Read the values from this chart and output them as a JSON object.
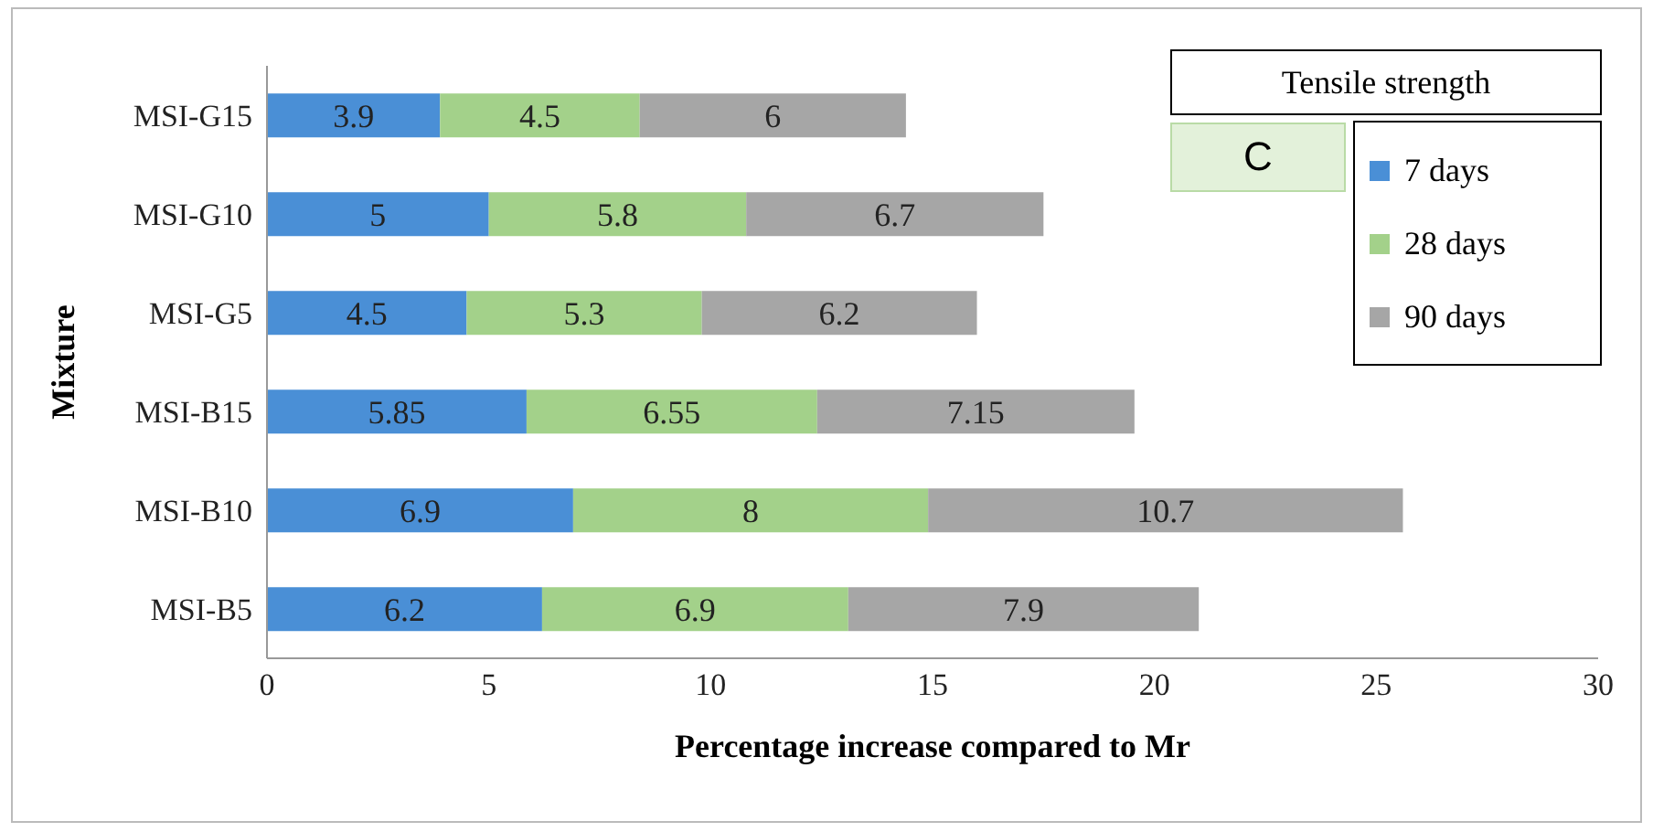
{
  "chart_data": {
    "type": "bar",
    "orientation": "horizontal",
    "stacked": true,
    "xlabel": "Percentage increase compared to Mr",
    "ylabel": "Mixture",
    "categories": [
      "MSI-G15",
      "MSI-G10",
      "MSI-G5",
      "MSI-B15",
      "MSI-B10",
      "MSI-B5"
    ],
    "series": [
      {
        "name": "7 days",
        "color": "#4a8fd6",
        "values": [
          3.9,
          5,
          4.5,
          5.85,
          6.9,
          6.2
        ]
      },
      {
        "name": "28 days",
        "color": "#a3d18a",
        "values": [
          4.5,
          5.8,
          5.3,
          6.55,
          8,
          6.9
        ]
      },
      {
        "name": "90 days",
        "color": "#a6a6a6",
        "values": [
          6,
          6.7,
          6.2,
          7.15,
          10.7,
          7.9
        ]
      }
    ],
    "xlim": [
      0,
      30
    ],
    "xticks": [
      0,
      5,
      10,
      15,
      20,
      25,
      30
    ],
    "data_labels": true,
    "legend": "top right",
    "annotations": [
      "Tensile strength",
      "C"
    ]
  }
}
